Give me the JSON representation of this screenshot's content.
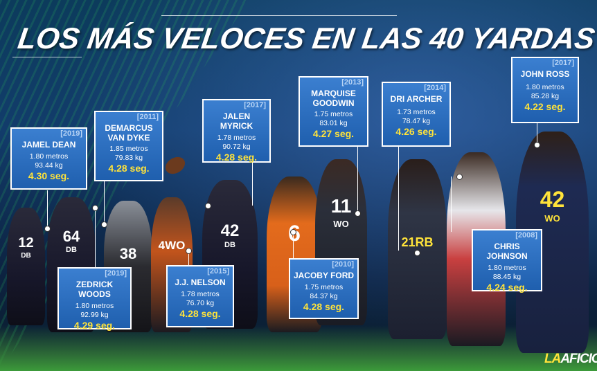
{
  "title": "LOS MÁS VELOCES EN LAS 40 YARDAS",
  "brand": {
    "prefix": "LA",
    "name": "AFICIÓN."
  },
  "colors": {
    "card": "#2a6cc0",
    "time": "#ffe33a",
    "background": "#0c3b5c"
  },
  "jerseys": [
    "12",
    "DB",
    "64",
    "DB",
    "38",
    "4WO",
    "42",
    "DB",
    "6",
    "11",
    "WO",
    "21RB",
    "42",
    "WO"
  ],
  "players": [
    {
      "year": "[2019]",
      "name": [
        "JAMEL DEAN"
      ],
      "height": "1.80 metros",
      "weight": "93.44 kg",
      "time": "4.30 seg."
    },
    {
      "year": "[2019]",
      "name": [
        "ZEDRICK WOODS"
      ],
      "height": "1.80 metros",
      "weight": "92.99 kg",
      "time": "4.29 seg."
    },
    {
      "year": "[2011]",
      "name": [
        "DEMARCUS",
        "VAN DYKE"
      ],
      "height": "1.85 metros",
      "weight": "79.83 kg",
      "time": "4.28 seg."
    },
    {
      "year": "[2015]",
      "name": [
        "J.J. NELSON"
      ],
      "height": "1.78 metros",
      "weight": "76.70 kg",
      "time": "4.28 seg."
    },
    {
      "year": "[2017]",
      "name": [
        "JALEN MYRICK"
      ],
      "height": "1.78 metros",
      "weight": "90.72 kg",
      "time": "4.28 seg."
    },
    {
      "year": "[2010]",
      "name": [
        "JACOBY FORD"
      ],
      "height": "1.75 metros",
      "weight": "84.37 kg",
      "time": "4.28 seg."
    },
    {
      "year": "[2013]",
      "name": [
        "MARQUISE",
        "GOODWIN"
      ],
      "height": "1.75 metros",
      "weight": "83.01 kg",
      "time": "4.27 seg."
    },
    {
      "year": "[2014]",
      "name": [
        "DRI ARCHER"
      ],
      "height": "1.73 metros",
      "weight": "78.47 kg",
      "time": "4.26 seg."
    },
    {
      "year": "[2008]",
      "name": [
        "CHRIS JOHNSON"
      ],
      "height": "1.80 metros",
      "weight": "88.45 kg",
      "time": "4.24 seg."
    },
    {
      "year": "[2017]",
      "name": [
        "JOHN ROSS"
      ],
      "height": "1.80 metros",
      "weight": "85.28 kg",
      "time": "4.22 seg."
    }
  ]
}
